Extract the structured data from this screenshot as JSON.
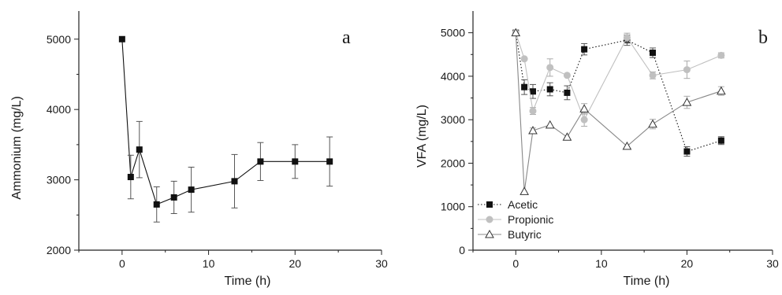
{
  "chart_data": [
    {
      "type": "line",
      "panel_label": "a",
      "xlabel": "Time (h)",
      "ylabel": "Ammonium (mg/L)",
      "xlim": [
        -5,
        30
      ],
      "ylim": [
        2000,
        5400
      ],
      "xticks": [
        0,
        10,
        20,
        30
      ],
      "yticks": [
        2000,
        3000,
        4000,
        5000
      ],
      "series": [
        {
          "color": "#111111",
          "marker": "square",
          "line": "solid",
          "x": [
            0,
            1,
            2,
            4,
            6,
            8,
            13,
            16,
            20,
            24
          ],
          "y": [
            5000,
            3040,
            3430,
            2650,
            2750,
            2860,
            2980,
            3260,
            3260,
            3260
          ],
          "err": [
            0,
            310,
            400,
            250,
            230,
            320,
            380,
            270,
            240,
            350
          ]
        }
      ]
    },
    {
      "type": "line",
      "panel_label": "b",
      "xlabel": "Time (h)",
      "ylabel": "VFA (mg/L)",
      "xlim": [
        -5,
        30
      ],
      "ylim": [
        0,
        5500
      ],
      "xticks": [
        0,
        10,
        20,
        30
      ],
      "yticks": [
        0,
        1000,
        2000,
        3000,
        4000,
        5000
      ],
      "legend_position": "bottom-left",
      "series": [
        {
          "name": "Acetic",
          "color": "#111111",
          "marker": "square",
          "line": "dotted",
          "x": [
            0,
            1,
            2,
            4,
            6,
            8,
            13,
            16,
            20,
            24
          ],
          "y": [
            5000,
            3750,
            3650,
            3700,
            3620,
            4620,
            4830,
            4540,
            2270,
            2520
          ],
          "err": [
            0,
            170,
            160,
            150,
            160,
            130,
            120,
            110,
            110,
            90
          ]
        },
        {
          "name": "Propionic",
          "color": "#c0c0c0",
          "marker": "circle",
          "line": "solid",
          "x": [
            0,
            1,
            2,
            4,
            6,
            8,
            13,
            16,
            20,
            24
          ],
          "y": [
            5000,
            4400,
            3200,
            4200,
            4020,
            3000,
            4890,
            4020,
            4150,
            4480
          ],
          "err": [
            0,
            0,
            80,
            200,
            0,
            150,
            100,
            80,
            200,
            60
          ]
        },
        {
          "name": "Butyric",
          "color": "#888888",
          "marker": "triangle-open",
          "line": "solid",
          "x": [
            0,
            1,
            2,
            4,
            6,
            8,
            13,
            16,
            20,
            24
          ],
          "y": [
            5000,
            1350,
            2750,
            2880,
            2600,
            3250,
            2390,
            2900,
            3400,
            3660
          ],
          "err": [
            0,
            0,
            60,
            0,
            0,
            120,
            0,
            110,
            140,
            100
          ]
        }
      ]
    }
  ]
}
